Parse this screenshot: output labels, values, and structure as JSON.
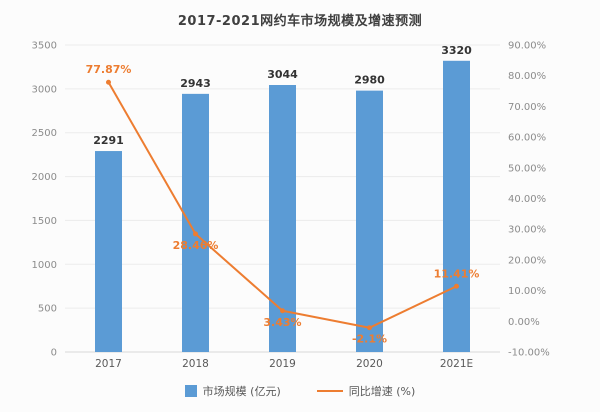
{
  "title": "2017-2021网约车市场规模及增速预测",
  "colors": {
    "bar": "#5B9BD5",
    "line": "#ED7D31",
    "grid": "#ebebeb",
    "axis_line": "#d9d9d9",
    "axis_text": "#8c8c8c",
    "category_text": "#595959",
    "bar_label_text": "#333333"
  },
  "legend": [
    {
      "label": "市场规模 (亿元)",
      "type": "bar"
    },
    {
      "label": "同比增速 (%)",
      "type": "line"
    }
  ],
  "chart_data": {
    "type": "bar+line",
    "title": "2017-2021网约车市场规模及增速预测",
    "categories": [
      "2017",
      "2018",
      "2019",
      "2020",
      "2021E"
    ],
    "series": [
      {
        "name": "市场规模 (亿元)",
        "type": "bar",
        "axis": "left",
        "values": [
          2291,
          2943,
          3044,
          2980,
          3320
        ],
        "labels": [
          "2291",
          "2943",
          "3044",
          "2980",
          "3320"
        ]
      },
      {
        "name": "同比增速 (%)",
        "type": "line",
        "axis": "right",
        "values": [
          77.87,
          28.46,
          3.43,
          -2.1,
          11.41
        ],
        "labels": [
          "77.87%",
          "28.46%",
          "3.43%",
          "-2.1%",
          "11.41%"
        ],
        "label_position": [
          "above",
          "below",
          "below",
          "below",
          "above"
        ]
      }
    ],
    "left_axis": {
      "min": 0,
      "max": 3500,
      "step": 500,
      "ticks": [
        "0",
        "500",
        "1000",
        "1500",
        "2000",
        "2500",
        "3000",
        "3500"
      ]
    },
    "right_axis": {
      "min": -10,
      "max": 90,
      "step": 10,
      "ticks": [
        "-10.00%",
        "0.00%",
        "10.00%",
        "20.00%",
        "30.00%",
        "40.00%",
        "50.00%",
        "60.00%",
        "70.00%",
        "80.00%",
        "90.00%"
      ]
    },
    "grid": true,
    "legend_position": "bottom"
  }
}
